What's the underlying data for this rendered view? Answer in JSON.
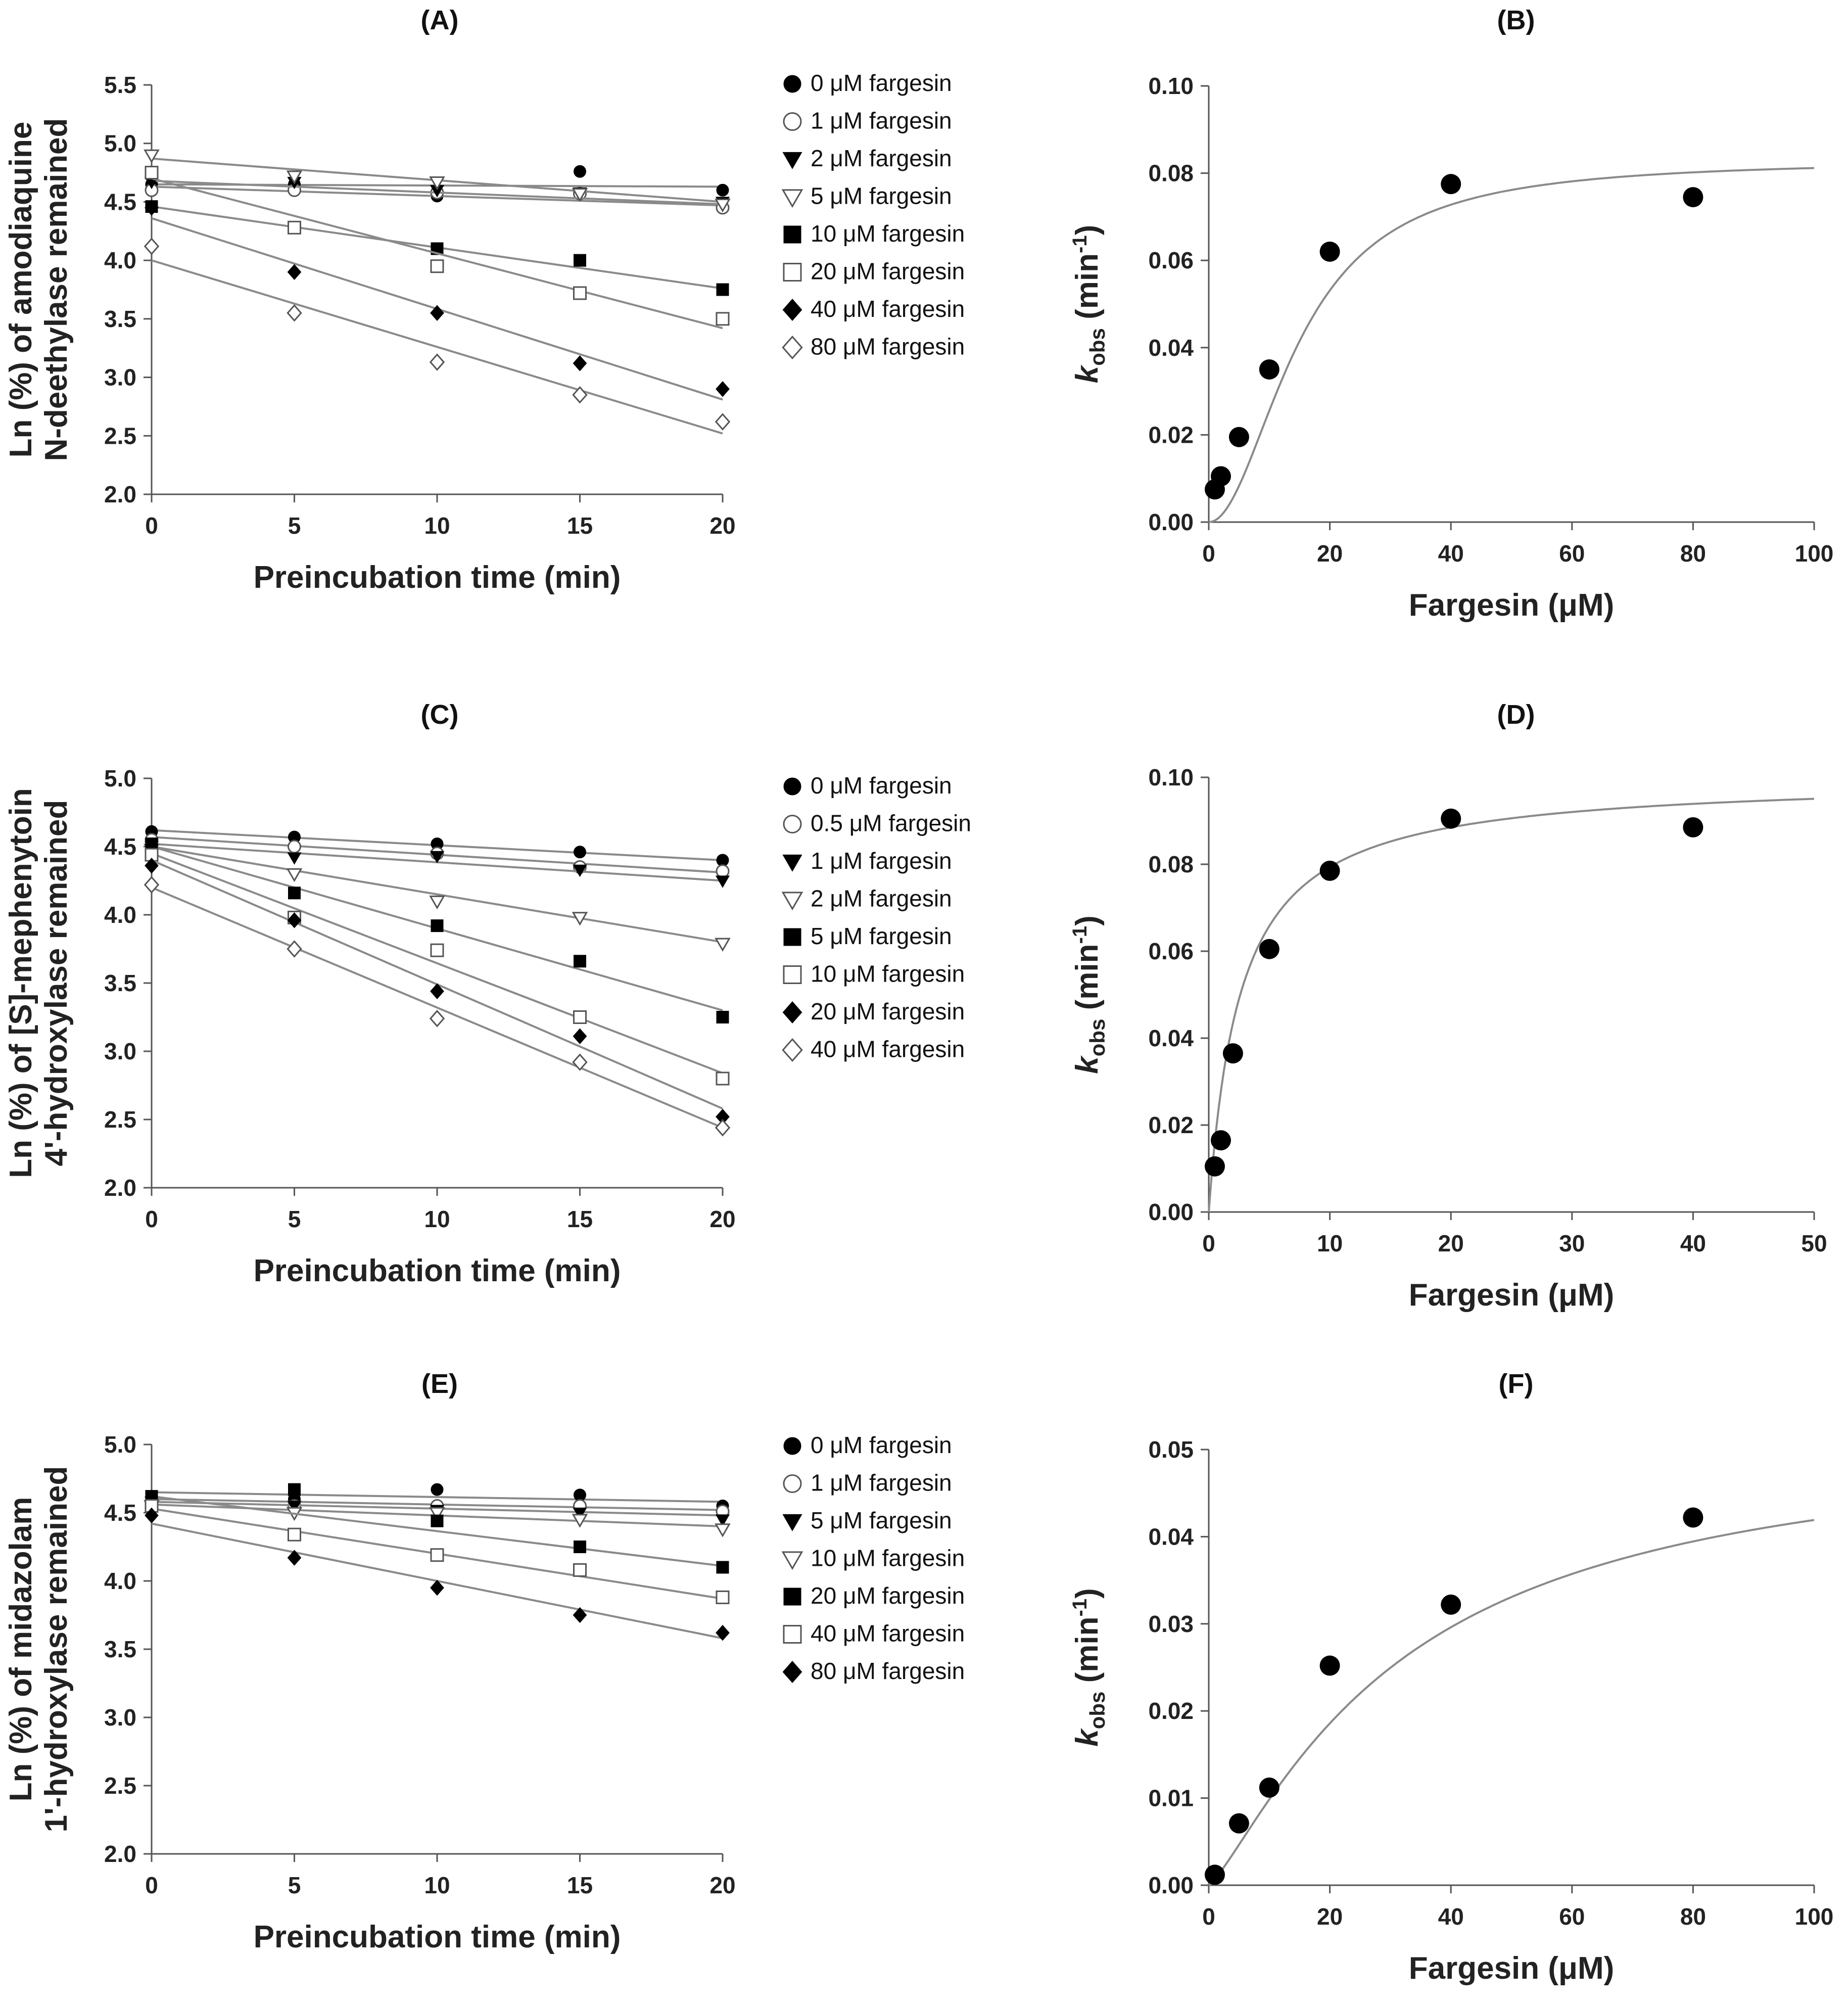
{
  "chart_data": [
    {
      "id": "A",
      "type": "scatter",
      "title": "(A)",
      "xlabel": "Preincubation time (min)",
      "ylabel_lines": [
        "Ln (%) of amodiaquine",
        "N-deethylase remained"
      ],
      "xlim": [
        0,
        20
      ],
      "ylim": [
        2.0,
        5.5
      ],
      "xticks": [
        0,
        5,
        10,
        15,
        20
      ],
      "xtick_labels": [
        "0",
        "5",
        "10",
        "15",
        "20"
      ],
      "yticks": [
        2.0,
        2.5,
        3.0,
        3.5,
        4.0,
        4.5,
        5.0,
        5.5
      ],
      "ytick_labels": [
        "2.0",
        "2.5",
        "3.0",
        "3.5",
        "4.0",
        "4.5",
        "5.0",
        "5.5"
      ],
      "legend_position": "right",
      "x": [
        0,
        5,
        10,
        15,
        20
      ],
      "series": [
        {
          "name": "0 μM fargesin",
          "marker": "circle-filled",
          "values": [
            4.65,
            4.65,
            4.55,
            4.76,
            4.6
          ],
          "fit": [
            4.65,
            4.63
          ]
        },
        {
          "name": "1 μM fargesin",
          "marker": "circle-open",
          "values": [
            4.6,
            4.6,
            4.58,
            4.57,
            4.45
          ],
          "fit": [
            4.63,
            4.47
          ]
        },
        {
          "name": "2 μM fargesin",
          "marker": "triangle-down-filled",
          "values": [
            4.67,
            4.67,
            4.6,
            4.58,
            4.5
          ],
          "fit": [
            4.68,
            4.48
          ]
        },
        {
          "name": "5 μM fargesin",
          "marker": "triangle-down-open",
          "values": [
            4.9,
            4.72,
            4.67,
            4.57,
            4.48
          ],
          "fit": [
            4.87,
            4.5
          ]
        },
        {
          "name": "10 μM fargesin",
          "marker": "square-filled",
          "values": [
            4.46,
            4.28,
            4.1,
            4.0,
            3.75
          ],
          "fit": [
            4.46,
            3.76
          ]
        },
        {
          "name": "20 μM fargesin",
          "marker": "square-open",
          "values": [
            4.75,
            4.28,
            3.95,
            3.72,
            3.5
          ],
          "fit": [
            4.7,
            3.42
          ]
        },
        {
          "name": "40 μM fargesin",
          "marker": "diamond-filled",
          "values": [
            4.45,
            3.9,
            3.55,
            3.12,
            2.9
          ],
          "fit": [
            4.36,
            2.81
          ]
        },
        {
          "name": "80 μM fargesin",
          "marker": "diamond-open",
          "values": [
            4.12,
            3.55,
            3.13,
            2.85,
            2.62
          ],
          "fit": [
            4.0,
            2.52
          ]
        }
      ]
    },
    {
      "id": "B",
      "type": "scatter",
      "title": "(B)",
      "xlabel": "Fargesin (μM)",
      "ylabel": "kobs (min-1)",
      "ylabel_main": "k",
      "ylabel_sub": "obs",
      "ylabel_rest": " (min",
      "ylabel_sup": "-1",
      "ylabel_end": ")",
      "xlim": [
        0,
        100
      ],
      "ylim": [
        0,
        0.1
      ],
      "xticks": [
        0,
        20,
        40,
        60,
        80,
        100
      ],
      "xtick_labels": [
        "0",
        "20",
        "40",
        "60",
        "80",
        "100"
      ],
      "yticks": [
        0,
        0.02,
        0.04,
        0.06,
        0.08,
        0.1
      ],
      "ytick_labels": [
        "0.00",
        "0.02",
        "0.04",
        "0.06",
        "0.08",
        "0.10"
      ],
      "x": [
        1,
        2,
        5,
        10,
        20,
        40,
        80
      ],
      "values": [
        0.0075,
        0.0105,
        0.0195,
        0.035,
        0.062,
        0.0775,
        0.0745
      ],
      "fit": {
        "kinact": 0.083,
        "KI": 15,
        "n": 2
      }
    },
    {
      "id": "C",
      "type": "scatter",
      "title": "(C)",
      "xlabel": "Preincubation time (min)",
      "ylabel_lines": [
        "Ln (%) of [S]-mephenytoin",
        "4'-hydroxylase remained"
      ],
      "xlim": [
        0,
        20
      ],
      "ylim": [
        2.0,
        5.0
      ],
      "xticks": [
        0,
        5,
        10,
        15,
        20
      ],
      "xtick_labels": [
        "0",
        "5",
        "10",
        "15",
        "20"
      ],
      "yticks": [
        2.0,
        2.5,
        3.0,
        3.5,
        4.0,
        4.5,
        5.0
      ],
      "ytick_labels": [
        "2.0",
        "2.5",
        "3.0",
        "3.5",
        "4.0",
        "4.5",
        "5.0"
      ],
      "legend_position": "right",
      "x": [
        0,
        5,
        10,
        15,
        20
      ],
      "series": [
        {
          "name": "0 μM fargesin",
          "marker": "circle-filled",
          "values": [
            4.61,
            4.57,
            4.52,
            4.46,
            4.4
          ],
          "fit": [
            4.62,
            4.4
          ]
        },
        {
          "name": "0.5 μM fargesin",
          "marker": "circle-open",
          "values": [
            4.55,
            4.5,
            4.45,
            4.35,
            4.32
          ],
          "fit": [
            4.57,
            4.31
          ]
        },
        {
          "name": "1 μM fargesin",
          "marker": "triangle-down-filled",
          "values": [
            4.5,
            4.42,
            4.43,
            4.33,
            4.25
          ],
          "fit": [
            4.52,
            4.25
          ]
        },
        {
          "name": "2 μM fargesin",
          "marker": "triangle-down-open",
          "values": [
            4.48,
            4.3,
            4.1,
            3.98,
            3.79
          ],
          "fit": [
            4.5,
            3.8
          ]
        },
        {
          "name": "5 μM fargesin",
          "marker": "square-filled",
          "values": [
            4.52,
            4.16,
            3.92,
            3.66,
            3.25
          ],
          "fit": [
            4.5,
            3.3
          ]
        },
        {
          "name": "10 μM fargesin",
          "marker": "square-open",
          "values": [
            4.44,
            3.98,
            3.74,
            3.25,
            2.8
          ],
          "fit": [
            4.45,
            2.84
          ]
        },
        {
          "name": "20 μM fargesin",
          "marker": "diamond-filled",
          "values": [
            4.36,
            3.96,
            3.44,
            3.11,
            2.52
          ],
          "fit": [
            4.4,
            2.58
          ]
        },
        {
          "name": "40 μM fargesin",
          "marker": "diamond-open",
          "values": [
            4.22,
            3.75,
            3.24,
            2.92,
            2.44
          ],
          "fit": [
            4.2,
            2.44
          ]
        }
      ]
    },
    {
      "id": "D",
      "type": "scatter",
      "title": "(D)",
      "xlabel": "Fargesin (μM)",
      "ylabel": "kobs (min-1)",
      "ylabel_main": "k",
      "ylabel_sub": "obs",
      "ylabel_rest": " (min",
      "ylabel_sup": "-1",
      "ylabel_end": ")",
      "xlim": [
        0,
        50
      ],
      "ylim": [
        0,
        0.1
      ],
      "xticks": [
        0,
        10,
        20,
        30,
        40,
        50
      ],
      "xtick_labels": [
        "0",
        "10",
        "20",
        "30",
        "40",
        "50"
      ],
      "yticks": [
        0,
        0.02,
        0.04,
        0.06,
        0.08,
        0.1
      ],
      "ytick_labels": [
        "0.00",
        "0.02",
        "0.04",
        "0.06",
        "0.08",
        "0.10"
      ],
      "x": [
        0.5,
        1,
        2,
        5,
        10,
        20,
        40
      ],
      "values": [
        0.0105,
        0.0165,
        0.0365,
        0.0605,
        0.0785,
        0.0905,
        0.0885
      ],
      "fit": {
        "kinact": 0.1,
        "KI": 2.6,
        "n": 1
      }
    },
    {
      "id": "E",
      "type": "scatter",
      "title": "(E)",
      "xlabel": "Preincubation time (min)",
      "ylabel_lines": [
        "Ln (%) of midazolam",
        "1'-hydroxylase remained"
      ],
      "xlim": [
        0,
        20
      ],
      "ylim": [
        2.0,
        5.0
      ],
      "xticks": [
        0,
        5,
        10,
        15,
        20
      ],
      "xtick_labels": [
        "0",
        "5",
        "10",
        "15",
        "20"
      ],
      "yticks": [
        2.0,
        2.5,
        3.0,
        3.5,
        4.0,
        4.5,
        5.0
      ],
      "ytick_labels": [
        "2.0",
        "2.5",
        "3.0",
        "3.5",
        "4.0",
        "4.5",
        "5.0"
      ],
      "legend_position": "right",
      "x": [
        0,
        5,
        10,
        15,
        20
      ],
      "series": [
        {
          "name": "0 μM fargesin",
          "marker": "circle-filled",
          "values": [
            4.62,
            4.6,
            4.67,
            4.63,
            4.55
          ],
          "fit": [
            4.65,
            4.58
          ]
        },
        {
          "name": "1 μM fargesin",
          "marker": "circle-open",
          "values": [
            4.58,
            4.55,
            4.55,
            4.55,
            4.51
          ],
          "fit": [
            4.6,
            4.52
          ]
        },
        {
          "name": "5 μM fargesin",
          "marker": "triangle-down-filled",
          "values": [
            4.58,
            4.55,
            4.52,
            4.5,
            4.45
          ],
          "fit": [
            4.58,
            4.48
          ]
        },
        {
          "name": "10 μM fargesin",
          "marker": "triangle-down-open",
          "values": [
            4.55,
            4.5,
            4.5,
            4.45,
            4.38
          ],
          "fit": [
            4.56,
            4.4
          ]
        },
        {
          "name": "20 μM fargesin",
          "marker": "square-filled",
          "values": [
            4.62,
            4.67,
            4.44,
            4.25,
            4.1
          ],
          "fit": [
            4.62,
            4.11
          ]
        },
        {
          "name": "40 μM fargesin",
          "marker": "square-open",
          "values": [
            4.55,
            4.34,
            4.19,
            4.08,
            3.88
          ],
          "fit": [
            4.53,
            3.87
          ]
        },
        {
          "name": "80 μM fargesin",
          "marker": "diamond-filled",
          "values": [
            4.48,
            4.17,
            3.95,
            3.75,
            3.62
          ],
          "fit": [
            4.42,
            3.58
          ]
        }
      ]
    },
    {
      "id": "F",
      "type": "scatter",
      "title": "(F)",
      "xlabel": "Fargesin (μM)",
      "ylabel": "kobs (min-1)",
      "ylabel_main": "k",
      "ylabel_sub": "obs",
      "ylabel_rest": " (min",
      "ylabel_sup": "-1",
      "ylabel_end": ")",
      "xlim": [
        0,
        100
      ],
      "ylim": [
        0,
        0.05
      ],
      "xticks": [
        0,
        20,
        40,
        60,
        80,
        100
      ],
      "xtick_labels": [
        "0",
        "20",
        "40",
        "60",
        "80",
        "100"
      ],
      "yticks": [
        0,
        0.01,
        0.02,
        0.03,
        0.04,
        0.05
      ],
      "ytick_labels": [
        "0.00",
        "0.01",
        "0.02",
        "0.03",
        "0.04",
        "0.05"
      ],
      "x": [
        1,
        5,
        10,
        20,
        40,
        80
      ],
      "values": [
        0.0012,
        0.0071,
        0.0112,
        0.0252,
        0.0322,
        0.0422
      ],
      "fit": {
        "kinact": 0.052,
        "KI": 32,
        "n": 1.25
      }
    }
  ]
}
